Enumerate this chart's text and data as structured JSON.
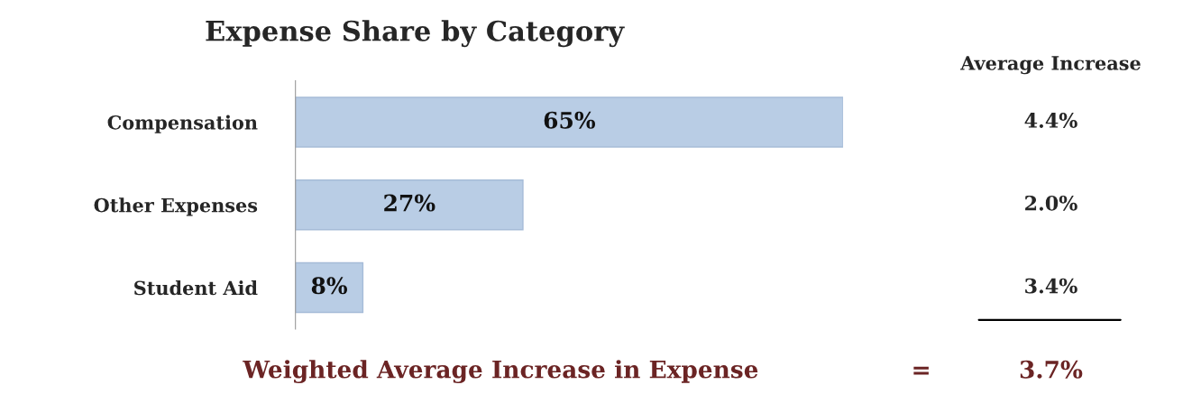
{
  "chart_data": {
    "type": "bar",
    "orientation": "horizontal",
    "title": "Expense Share by Category",
    "categories": [
      "Compensation",
      "Other Expenses",
      "Student Aid"
    ],
    "values": [
      65,
      27,
      8
    ],
    "value_labels": [
      "65%",
      "27%",
      "8%"
    ],
    "color": "#b9cde5",
    "annotations": [
      "Average Increase",
      "4.4%",
      "2.0%",
      "3.4%",
      "Weighted Average Increase in Expense",
      "=",
      "3.7%"
    ]
  }
}
